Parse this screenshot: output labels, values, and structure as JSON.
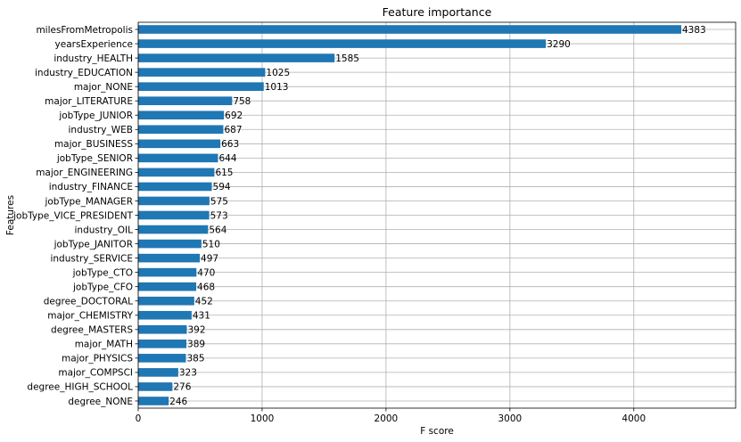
{
  "chart_data": {
    "type": "bar",
    "orientation": "horizontal",
    "title": "Feature importance",
    "xlabel": "F score",
    "ylabel": "Features",
    "xlim": [
      0,
      4822
    ],
    "xticks": [
      0,
      1000,
      2000,
      3000,
      4000
    ],
    "grid": true,
    "bar_color": "#1f77b4",
    "categories": [
      "milesFromMetropolis",
      "yearsExperience",
      "industry_HEALTH",
      "industry_EDUCATION",
      "major_NONE",
      "major_LITERATURE",
      "jobType_JUNIOR",
      "industry_WEB",
      "major_BUSINESS",
      "jobType_SENIOR",
      "major_ENGINEERING",
      "industry_FINANCE",
      "jobType_MANAGER",
      "jobType_VICE_PRESIDENT",
      "industry_OIL",
      "jobType_JANITOR",
      "industry_SERVICE",
      "jobType_CTO",
      "jobType_CFO",
      "degree_DOCTORAL",
      "major_CHEMISTRY",
      "degree_MASTERS",
      "major_MATH",
      "major_PHYSICS",
      "major_COMPSCI",
      "degree_HIGH_SCHOOL",
      "degree_NONE"
    ],
    "values": [
      4383,
      3290,
      1585,
      1025,
      1013,
      758,
      692,
      687,
      663,
      644,
      615,
      594,
      575,
      573,
      564,
      510,
      497,
      470,
      468,
      452,
      431,
      392,
      389,
      385,
      323,
      276,
      246
    ]
  }
}
